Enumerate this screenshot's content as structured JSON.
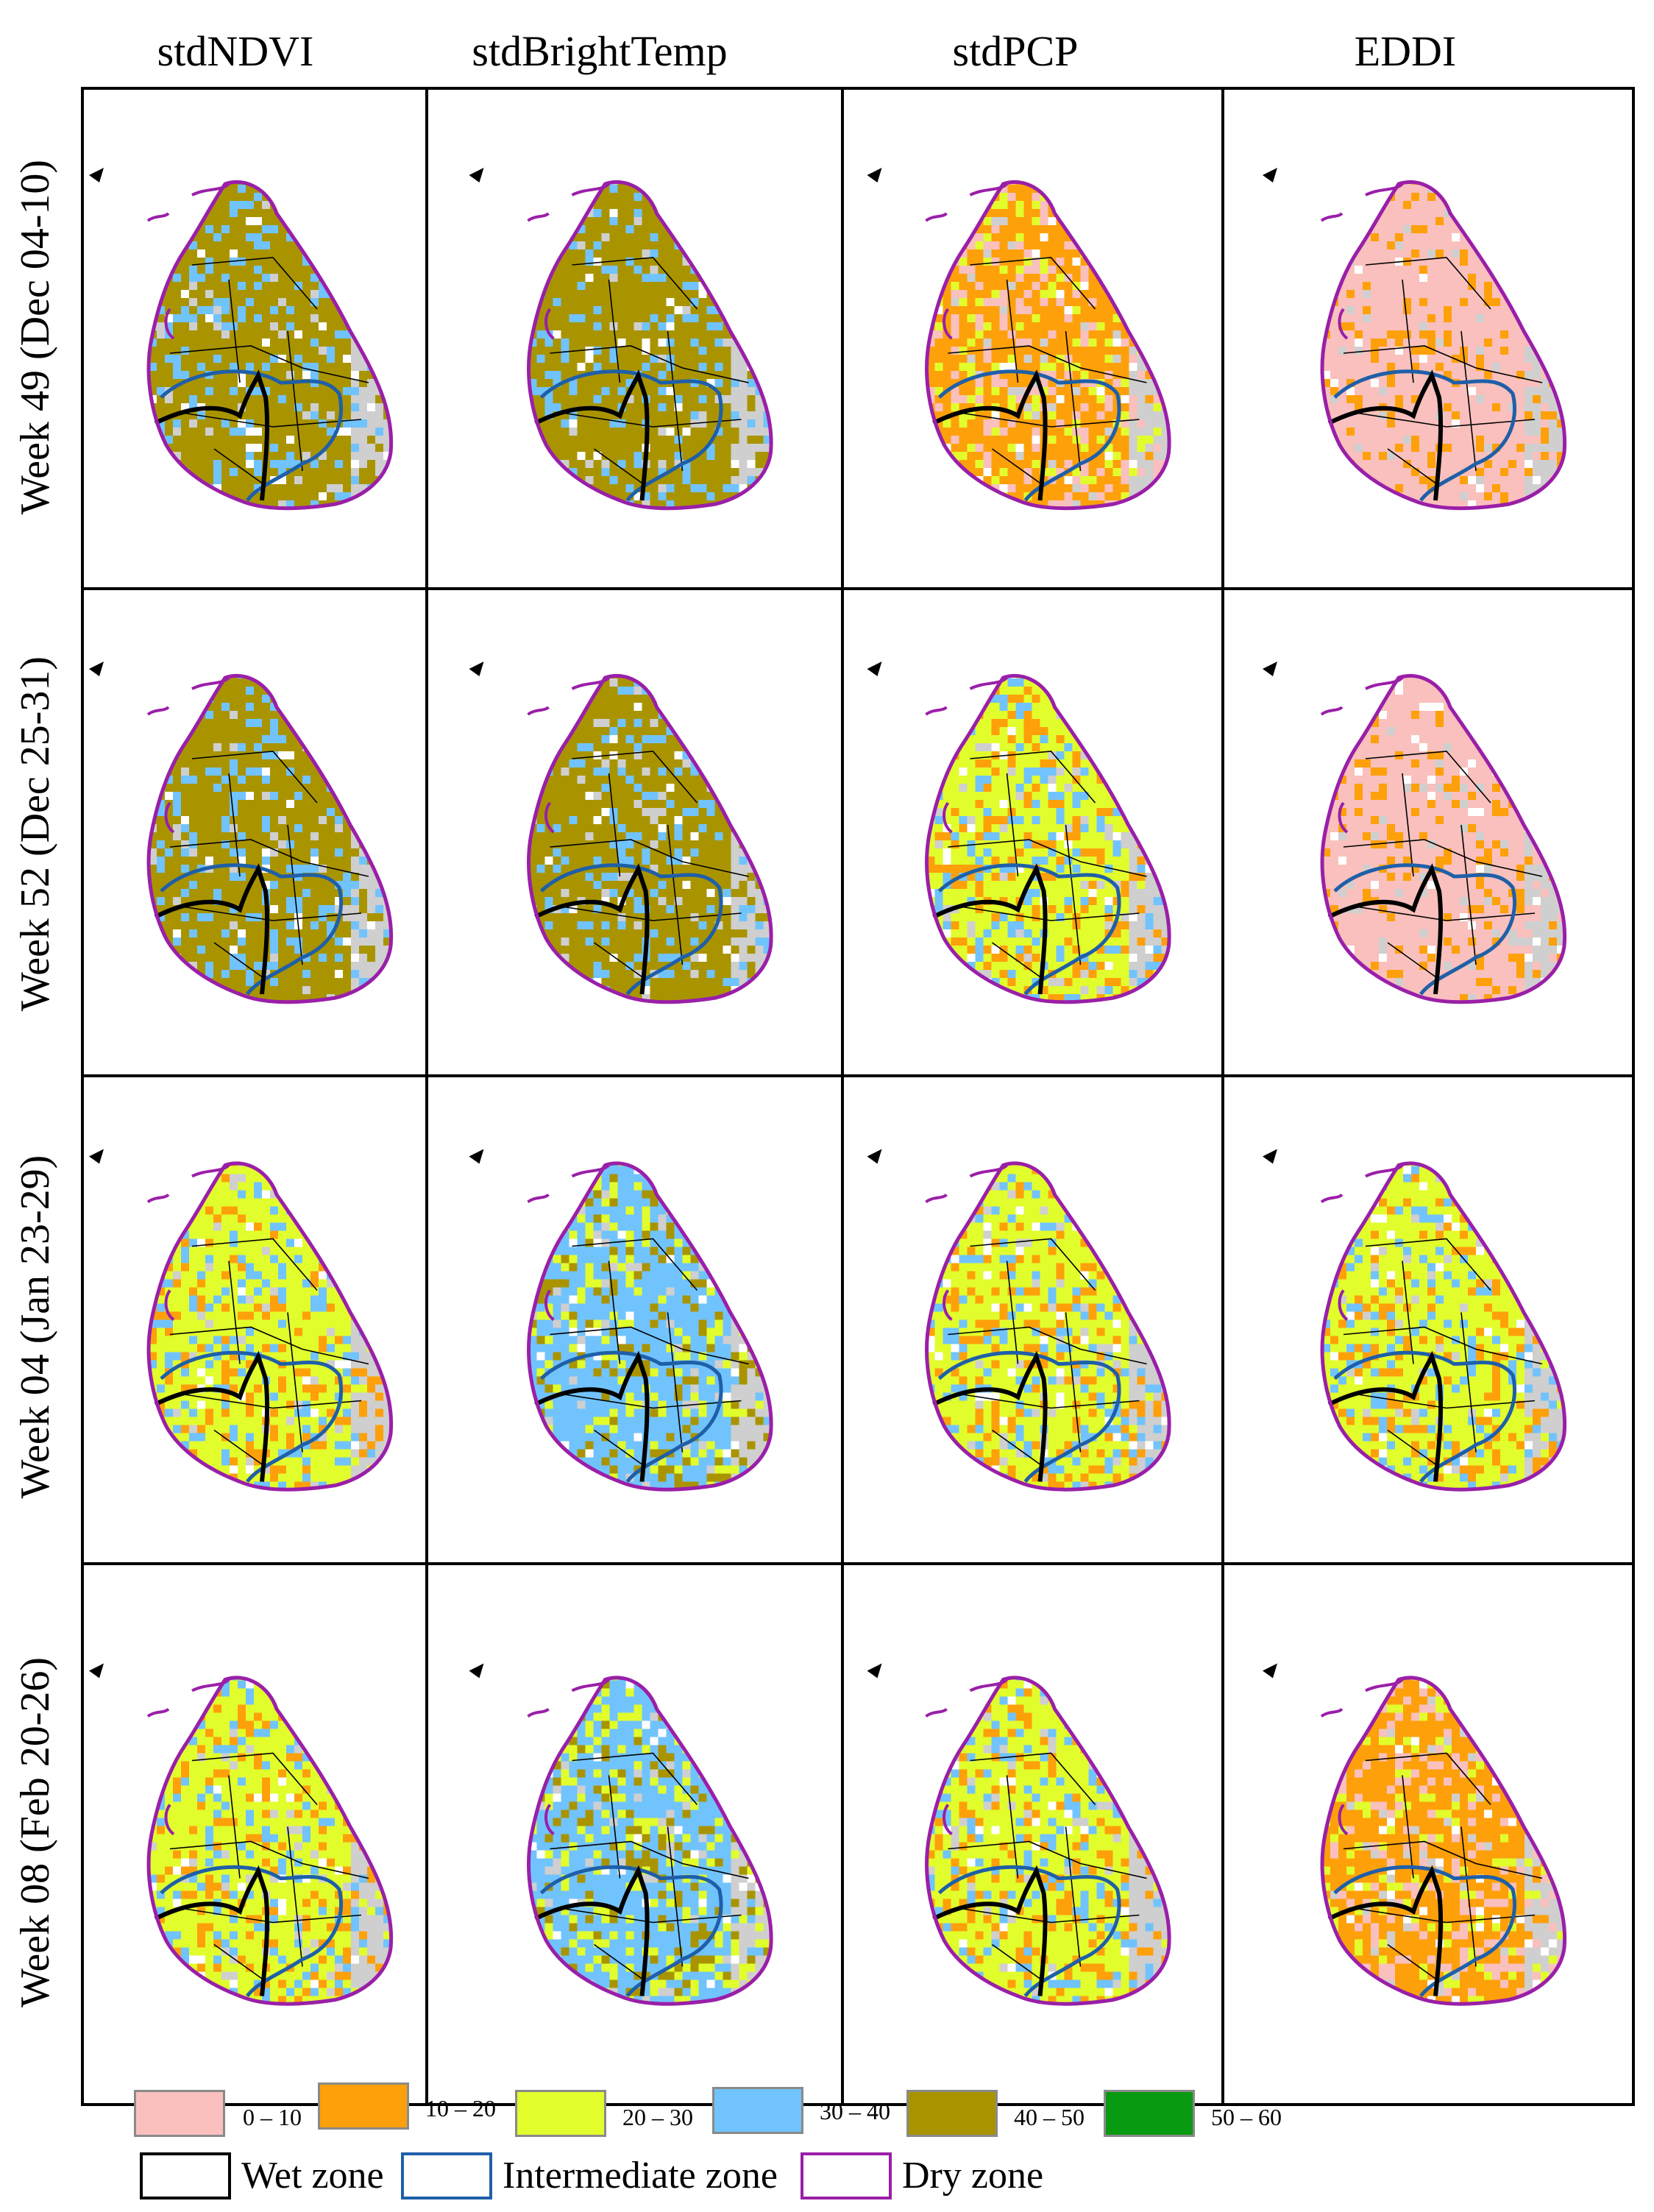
{
  "columns": [
    "stdNDVI",
    "stdBrightTemp",
    "stdPCP",
    "EDDI"
  ],
  "rows": [
    "Week 49 (Dec 04-10)",
    "Week 52 (Dec 25-31)",
    "Week 04 (Jan 23-29)",
    "Week 08 (Feb 20-26)"
  ],
  "palette": {
    "0 – 10": "#f9c0bd",
    "10 – 20": "#fea00a",
    "20 – 30": "#e2fd2c",
    "30 – 40": "#71c3fd",
    "40 – 50": "#a99400",
    "50 – 60": "#089a10",
    "nodata": "#cfcfcf"
  },
  "panels": [
    [
      "40 – 50",
      "40 – 50",
      "10 – 20",
      "0 – 10"
    ],
    [
      "40 – 50",
      "40 – 50",
      "20 – 30",
      "0 – 10"
    ],
    [
      "20 – 30",
      "30 – 40",
      "20 – 30",
      "20 – 30"
    ],
    [
      "20 – 30",
      "30 – 40",
      "20 – 30",
      "10 – 20"
    ]
  ],
  "legend": {
    "classes": [
      "0 – 10",
      "10 – 20",
      "20 – 30",
      "30 – 40",
      "40 – 50",
      "50 – 60"
    ],
    "zones": [
      {
        "label": "Wet zone",
        "color": "#000000"
      },
      {
        "label": "Intermediate zone",
        "color": "#1f5fa8"
      },
      {
        "label": "Dry zone",
        "color": "#9a1fa8"
      }
    ]
  }
}
